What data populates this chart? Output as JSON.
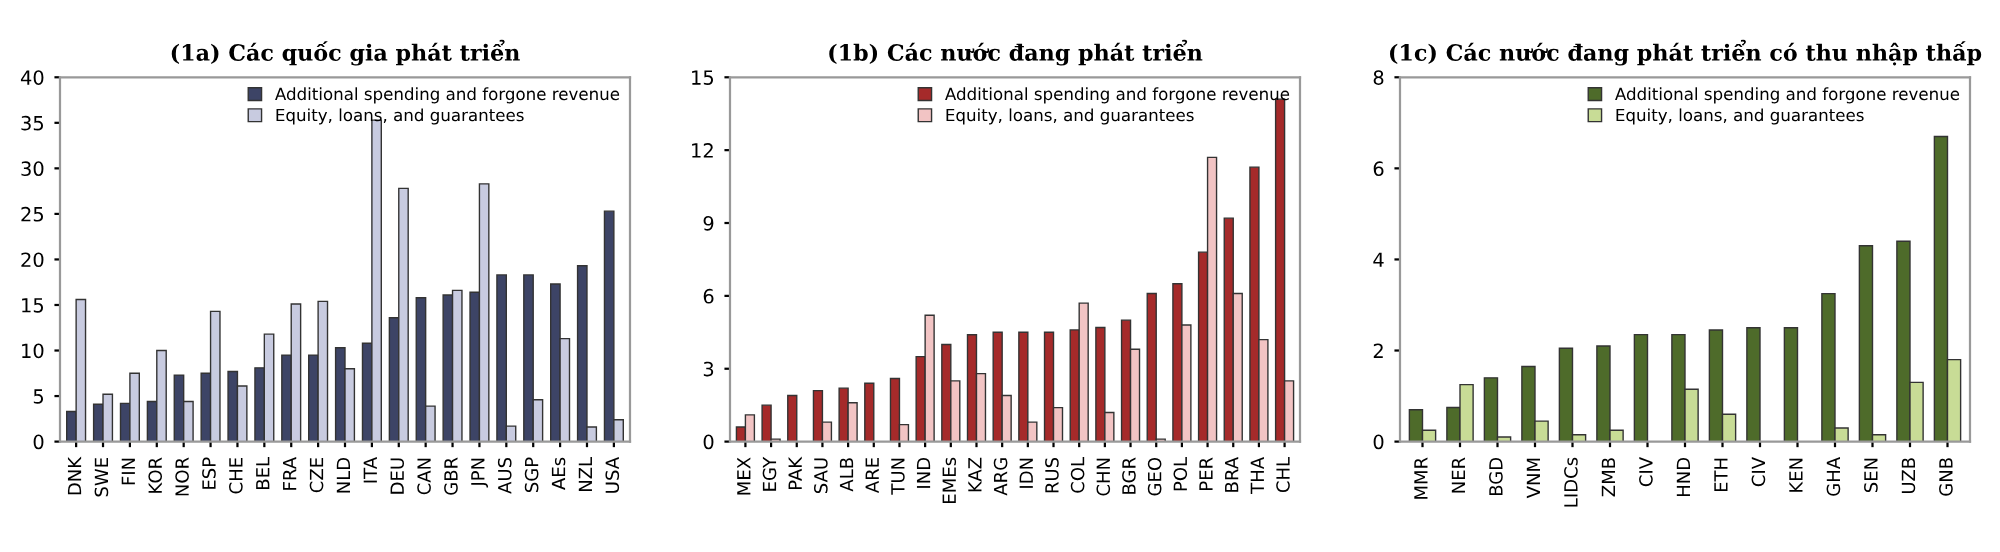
{
  "chart_data": [
    {
      "type": "bar",
      "title": "(1a) Các quốc gia phát triển",
      "categories": [
        "DNK",
        "SWE",
        "FIN",
        "KOR",
        "NOR",
        "ESP",
        "CHE",
        "BEL",
        "FRA",
        "CZE",
        "NLD",
        "ITA",
        "DEU",
        "CAN",
        "GBR",
        "JPN",
        "AUS",
        "SGP",
        "AEs",
        "NZL",
        "USA"
      ],
      "series": [
        {
          "name": "Additional spending and forgone revenue",
          "color": "#3d4466",
          "values": [
            3.3,
            4.1,
            4.2,
            4.4,
            7.3,
            7.5,
            7.7,
            8.1,
            9.5,
            9.5,
            10.3,
            10.8,
            13.6,
            15.8,
            16.1,
            16.4,
            18.3,
            18.3,
            17.3,
            19.3,
            25.3
          ]
        },
        {
          "name": "Equity, loans, and guarantees",
          "color": "#c8cbe0",
          "values": [
            15.6,
            5.2,
            7.5,
            10.0,
            4.4,
            14.3,
            6.1,
            11.8,
            15.1,
            15.4,
            8.0,
            35.3,
            27.8,
            3.9,
            16.6,
            28.3,
            1.7,
            4.6,
            11.3,
            1.6,
            2.4
          ]
        }
      ],
      "ylim": [
        0,
        40
      ],
      "yticks": [
        0,
        5,
        10,
        15,
        20,
        25,
        30,
        35,
        40
      ],
      "grid": false,
      "legend": "top right"
    },
    {
      "type": "bar",
      "title": "(1b) Các nước đang phát triển",
      "categories": [
        "MEX",
        "EGY",
        "PAK",
        "SAU",
        "ALB",
        "ARE",
        "TUN",
        "IND",
        "EMEs",
        "KAZ",
        "ARG",
        "IDN",
        "RUS",
        "COL",
        "CHN",
        "BGR",
        "GEO",
        "POL",
        "PER",
        "BRA",
        "THA",
        "CHL"
      ],
      "series": [
        {
          "name": "Additional spending and forgone revenue",
          "color": "#a52a2a",
          "values": [
            0.6,
            1.5,
            1.9,
            2.1,
            2.2,
            2.4,
            2.6,
            3.5,
            4.0,
            4.4,
            4.5,
            4.5,
            4.5,
            4.6,
            4.7,
            5.0,
            6.1,
            6.5,
            7.8,
            9.2,
            11.3,
            14.1
          ]
        },
        {
          "name": "Equity, loans, and guarantees",
          "color": "#f2c4c4",
          "values": [
            1.1,
            0.1,
            null,
            0.8,
            1.6,
            null,
            0.7,
            5.2,
            2.5,
            2.8,
            1.9,
            0.8,
            1.4,
            5.7,
            1.2,
            3.8,
            0.1,
            4.8,
            11.7,
            6.1,
            4.2,
            2.5
          ]
        }
      ],
      "ylim": [
        0,
        15
      ],
      "yticks": [
        0,
        3,
        6,
        9,
        12,
        15
      ],
      "grid": false,
      "legend": "top right"
    },
    {
      "type": "bar",
      "title": "(1c) Các nước đang phát triển có thu nhập thấp",
      "categories": [
        "MMR",
        "NER",
        "BGD",
        "VNM",
        "LIDCs",
        "ZMB",
        "CIV",
        "HND",
        "ETH",
        "CIV",
        "KEN",
        "GHA",
        "SEN",
        "UZB",
        "GNB"
      ],
      "series": [
        {
          "name": "Additional spending and forgone revenue",
          "color": "#4e6b2a",
          "values": [
            0.7,
            0.75,
            1.4,
            1.65,
            2.05,
            2.1,
            2.35,
            2.35,
            2.45,
            2.5,
            2.5,
            3.25,
            4.3,
            4.4,
            6.7
          ]
        },
        {
          "name": "Equity, loans, and guarantees",
          "color": "#c8dc96",
          "values": [
            0.25,
            1.25,
            0.1,
            0.45,
            0.15,
            0.25,
            null,
            1.15,
            0.6,
            null,
            null,
            0.3,
            0.15,
            1.3,
            1.8
          ]
        }
      ],
      "ylim": [
        0,
        8
      ],
      "yticks": [
        0,
        2,
        4,
        6,
        8
      ],
      "grid": false,
      "legend": "top right"
    }
  ]
}
